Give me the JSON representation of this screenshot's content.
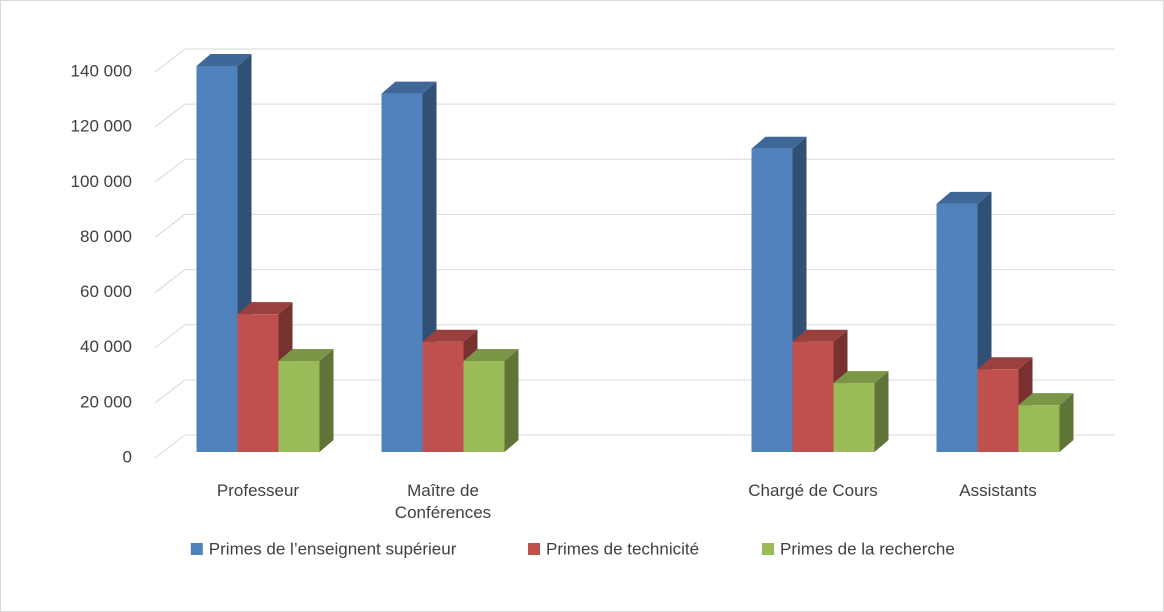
{
  "chart_data": {
    "type": "bar3d",
    "categories": [
      "Professeur",
      "Maître de Conférences",
      null,
      "Chargé de Cours",
      "Assistants"
    ],
    "series": [
      {
        "name": "Primes de l’enseignent supérieur",
        "color": "#4f81bd",
        "values": [
          140000,
          130000,
          null,
          110000,
          90000
        ]
      },
      {
        "name": "Primes de technicité",
        "color": "#c0504d",
        "values": [
          50000,
          40000,
          null,
          40000,
          30000
        ]
      },
      {
        "name": "Primes de la recherche",
        "color": "#9bbb59",
        "values": [
          33000,
          33000,
          null,
          25000,
          17000
        ]
      }
    ],
    "ylim": [
      0,
      140000
    ],
    "yticks": [
      0,
      {
        "value": 20000,
        "label": "20 000"
      },
      {
        "value": 40000,
        "label": "40 000"
      },
      {
        "value": 60000,
        "label": "60 000"
      },
      {
        "value": 80000,
        "label": "80 000"
      },
      {
        "value": 100000,
        "label": "100 000"
      },
      {
        "value": 120000,
        "label": "120 000"
      },
      {
        "value": 140000,
        "label": "140 000"
      }
    ],
    "grid": true,
    "legend": "bottom"
  }
}
